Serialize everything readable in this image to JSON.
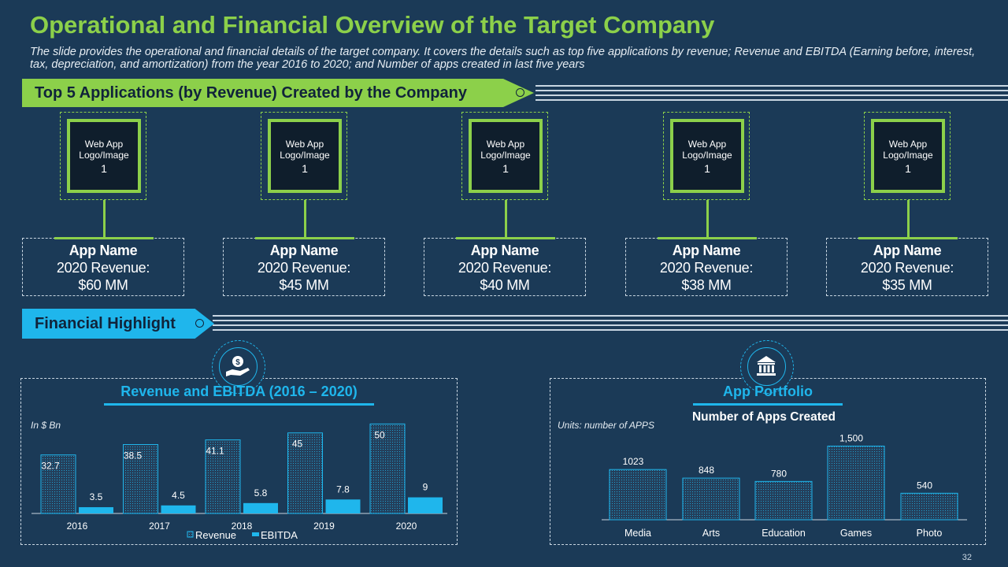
{
  "header": {
    "title": "Operational and Financial Overview of the Target Company",
    "subtitle": "The slide provides the operational and financial details of the target company. It covers the details such as top five applications by revenue; Revenue and EBITDA (Earning before, interest, tax, depreciation, and amortization) from the year 2016 to 2020; and Number of apps created in last five years"
  },
  "sections": {
    "top_apps": "Top 5 Applications (by Revenue) Created by the Company",
    "financial": "Financial Highlight"
  },
  "apps": [
    {
      "logo_line1": "Web App",
      "logo_line2": "Logo/Image",
      "logo_num": "1",
      "name": "App Name",
      "rev_label": "2020 Revenue:",
      "rev_value": "$60 MM"
    },
    {
      "logo_line1": "Web App",
      "logo_line2": "Logo/Image",
      "logo_num": "1",
      "name": "App Name",
      "rev_label": "2020 Revenue:",
      "rev_value": "$45 MM"
    },
    {
      "logo_line1": "Web App",
      "logo_line2": "Logo/Image",
      "logo_num": "1",
      "name": "App Name",
      "rev_label": "2020 Revenue:",
      "rev_value": "$40 MM"
    },
    {
      "logo_line1": "Web App",
      "logo_line2": "Logo/Image",
      "logo_num": "1",
      "name": "App Name",
      "rev_label": "2020 Revenue:",
      "rev_value": "$38 MM"
    },
    {
      "logo_line1": "Web App",
      "logo_line2": "Logo/Image",
      "logo_num": "1",
      "name": "App Name",
      "rev_label": "2020 Revenue:",
      "rev_value": "$35 MM"
    }
  ],
  "icons": {
    "revenue_badge": "hand-dollar-icon",
    "portfolio_badge": "bank-icon"
  },
  "colors": {
    "background": "#1b3a57",
    "green": "#8cd04a",
    "blue": "#1fb6ec",
    "dark": "#10233a"
  },
  "page_number": "32",
  "chart_data": [
    {
      "type": "bar",
      "title": "Revenue and EBITDA (2016 – 2020)",
      "unit_note": "In $ Bn",
      "categories": [
        "2016",
        "2017",
        "2018",
        "2019",
        "2020"
      ],
      "series": [
        {
          "name": "Revenue",
          "values": [
            32.7,
            38.5,
            41.1,
            45,
            50
          ],
          "labels": [
            "32.7",
            "38.5",
            "41.1",
            "45",
            "50"
          ]
        },
        {
          "name": "EBITDA",
          "values": [
            3.5,
            4.5,
            5.8,
            7.8,
            9
          ],
          "labels": [
            "3.5",
            "4.5",
            "5.8",
            "7.8",
            "9"
          ]
        }
      ],
      "ylim": [
        0,
        55
      ],
      "legend": "bottom"
    },
    {
      "type": "bar",
      "title": "App Portfolio",
      "subtitle": "Number of Apps Created",
      "unit_note": "Units: number of APPS",
      "categories": [
        "Media",
        "Arts",
        "Education",
        "Games",
        "Photo"
      ],
      "values": [
        1023,
        848,
        780,
        1500,
        540
      ],
      "labels": [
        "1023",
        "848",
        "780",
        "1,500",
        "540"
      ],
      "ylim": [
        0,
        1700
      ]
    }
  ]
}
